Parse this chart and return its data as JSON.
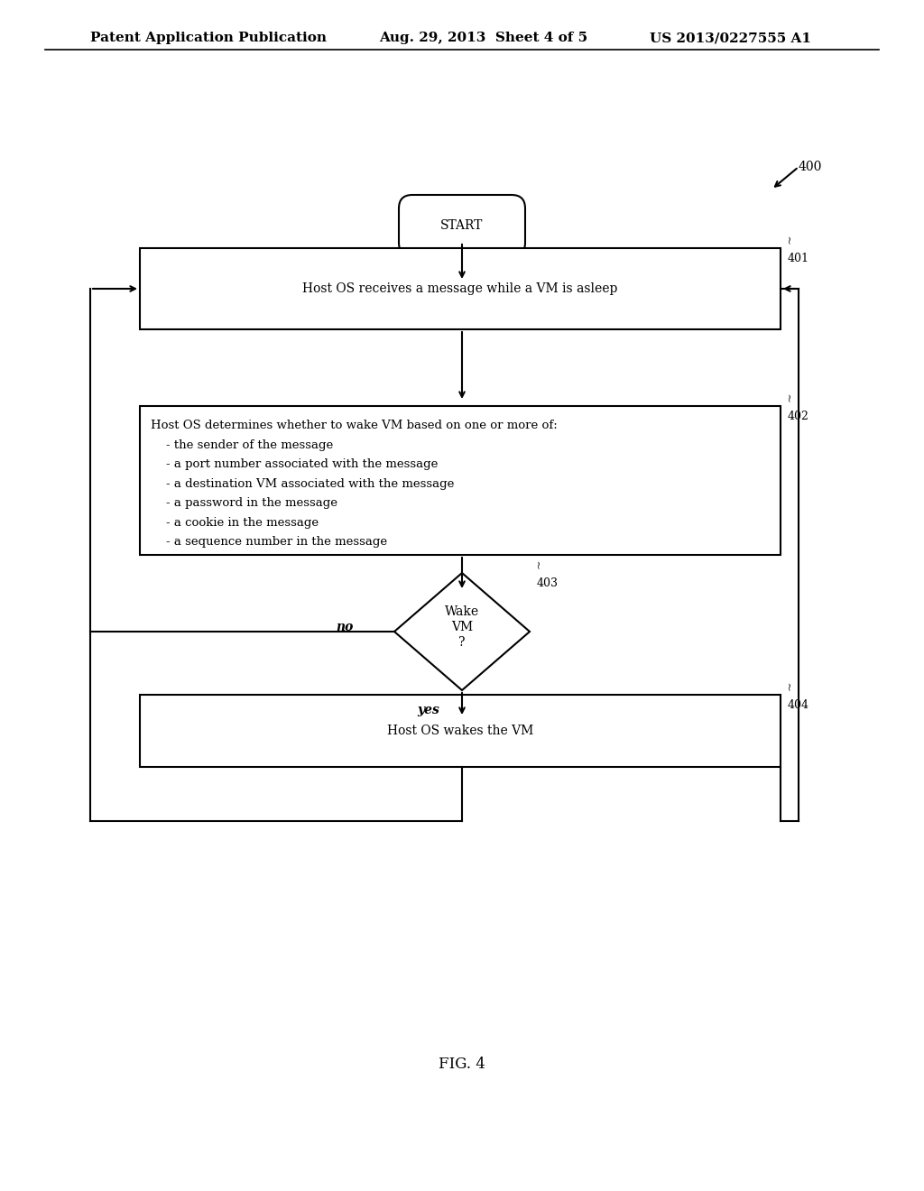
{
  "header_left": "Patent Application Publication",
  "header_mid": "Aug. 29, 2013  Sheet 4 of 5",
  "header_right": "US 2013/0227555 A1",
  "fig_label": "FIG. 4",
  "diagram_label": "400",
  "node_start_text": "START",
  "node401_text": "Host OS receives a message while a VM is asleep",
  "node401_label": "401",
  "node402_text": "Host OS determines whether to wake VM based on one or more of:\n    - the sender of the message\n    - a port number associated with the message\n    - a destination VM associated with the message\n    - a password in the message\n    - a cookie in the message\n    - a sequence number in the message",
  "node402_label": "402",
  "node403_text": "Wake\nVM\n?",
  "node403_label": "403",
  "node404_text": "Host OS wakes the VM",
  "node404_label": "404",
  "label_no": "no",
  "label_yes": "yes",
  "bg_color": "#ffffff",
  "box_color": "#000000",
  "text_color": "#000000",
  "font_size_header": 11,
  "font_size_node": 10,
  "font_size_label": 10,
  "font_size_start": 10
}
